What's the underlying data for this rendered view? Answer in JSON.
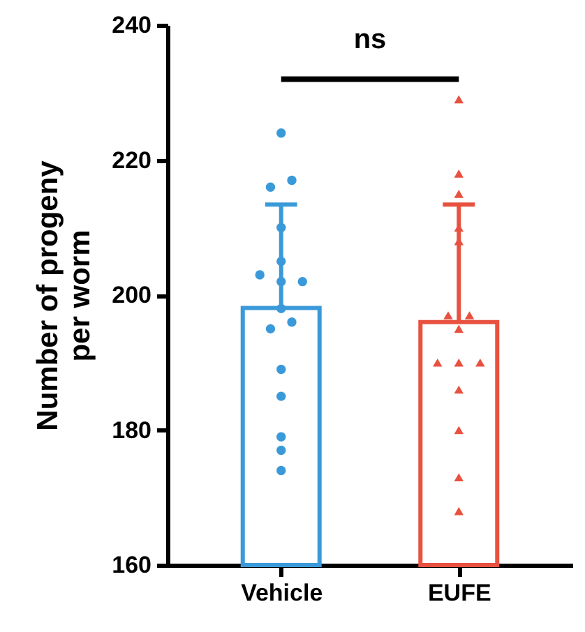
{
  "chart_data": {
    "type": "bar",
    "ylabel": "Number of progeny per worm",
    "categories": [
      "Vehicle",
      "EUFE"
    ],
    "ylim": [
      160,
      240
    ],
    "yticks": [
      160,
      180,
      200,
      220,
      240
    ],
    "grid": false,
    "annotations": [
      "ns"
    ],
    "series": [
      {
        "type": "bar",
        "colors": [
          "#3a9ad9",
          "#e8513f"
        ],
        "values": [
          198.1,
          196.0
        ],
        "errors": [
          [
            198.1,
            213.4
          ],
          [
            196.0,
            213.4
          ]
        ]
      },
      {
        "type": "scatter",
        "marker": "circle",
        "color": "#3a9ad9",
        "x": [
          "Vehicle",
          "Vehicle",
          "Vehicle",
          "Vehicle",
          "Vehicle",
          "Vehicle",
          "Vehicle",
          "Vehicle",
          "Vehicle",
          "Vehicle",
          "Vehicle",
          "Vehicle",
          "Vehicle",
          "Vehicle",
          "Vehicle",
          "Vehicle"
        ],
        "values": [
          224,
          216,
          217,
          210,
          205,
          203,
          202,
          202,
          195,
          196,
          189,
          185,
          179,
          177,
          174,
          198
        ]
      },
      {
        "type": "scatter",
        "marker": "triangle",
        "color": "#e8513f",
        "x": [
          "EUFE",
          "EUFE",
          "EUFE",
          "EUFE",
          "EUFE",
          "EUFE",
          "EUFE",
          "EUFE",
          "EUFE",
          "EUFE",
          "EUFE",
          "EUFE",
          "EUFE",
          "EUFE",
          "EUFE"
        ],
        "values": [
          229,
          218,
          215,
          210,
          208,
          197,
          197,
          195,
          190,
          190,
          190,
          186,
          180,
          173,
          168
        ]
      }
    ]
  }
}
